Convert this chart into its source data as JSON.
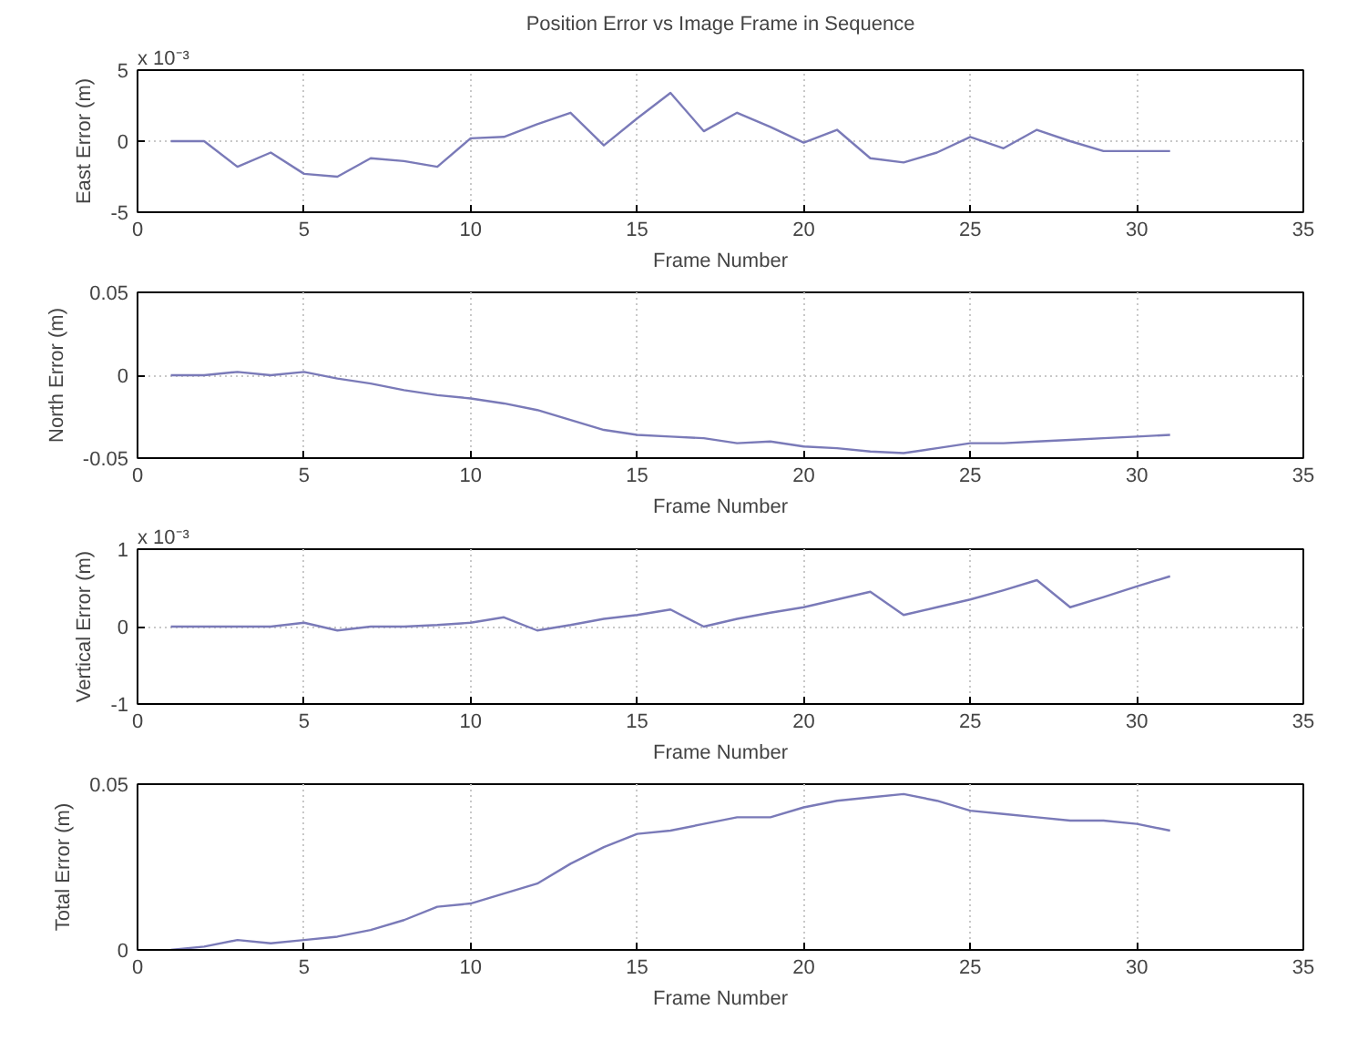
{
  "chart_data": [
    {
      "type": "line",
      "title": "Position Error vs Image Frame in Sequence",
      "xlabel": "Frame Number",
      "ylabel": "East Error (m)",
      "annotations": [
        "x 10⁻³"
      ],
      "x": [
        1,
        2,
        3,
        4,
        5,
        6,
        7,
        8,
        9,
        10,
        11,
        12,
        13,
        14,
        15,
        16,
        17,
        18,
        19,
        20,
        21,
        22,
        23,
        24,
        25,
        26,
        27,
        28,
        29,
        30,
        31
      ],
      "series": [
        {
          "color": "#7a7ab8",
          "values": [
            0,
            0,
            -1.8,
            -0.8,
            -2.3,
            -2.5,
            -1.2,
            -1.4,
            -1.8,
            0.2,
            0.3,
            1.2,
            2,
            -0.3,
            1.6,
            3.4,
            0.7,
            2,
            1,
            -0.1,
            0.8,
            -1.2,
            -1.5,
            -0.8,
            0.3,
            -0.5,
            0.8,
            0,
            -0.7,
            -0.7,
            -0.7
          ]
        }
      ],
      "xlim": [
        0,
        35
      ],
      "xticks": [
        0,
        5,
        10,
        15,
        20,
        25,
        30,
        35
      ],
      "ylim": [
        -5,
        5
      ],
      "yticks": [
        -5,
        0,
        5
      ],
      "grid": true
    },
    {
      "type": "line",
      "xlabel": "Frame Number",
      "ylabel": "North Error (m)",
      "x": [
        1,
        2,
        3,
        4,
        5,
        6,
        7,
        8,
        9,
        10,
        11,
        12,
        13,
        14,
        15,
        16,
        17,
        18,
        19,
        20,
        21,
        22,
        23,
        24,
        25,
        26,
        27,
        28,
        29,
        30,
        31
      ],
      "series": [
        {
          "color": "#7a7ab8",
          "values": [
            0,
            0,
            0.002,
            0,
            0.002,
            -0.002,
            -0.005,
            -0.009,
            -0.012,
            -0.014,
            -0.017,
            -0.021,
            -0.027,
            -0.033,
            -0.036,
            -0.037,
            -0.038,
            -0.041,
            -0.04,
            -0.043,
            -0.044,
            -0.046,
            -0.047,
            -0.044,
            -0.041,
            -0.041,
            -0.04,
            -0.039,
            -0.038,
            -0.037,
            -0.036
          ]
        }
      ],
      "xlim": [
        0,
        35
      ],
      "xticks": [
        0,
        5,
        10,
        15,
        20,
        25,
        30,
        35
      ],
      "ylim": [
        -0.05,
        0.05
      ],
      "yticks": [
        -0.05,
        0,
        0.05
      ],
      "grid": true
    },
    {
      "type": "line",
      "xlabel": "Frame Number",
      "ylabel": "Vertical Error (m)",
      "annotations": [
        "x 10⁻³"
      ],
      "x": [
        1,
        2,
        3,
        4,
        5,
        6,
        7,
        8,
        9,
        10,
        11,
        12,
        13,
        14,
        15,
        16,
        17,
        18,
        19,
        20,
        21,
        22,
        23,
        24,
        25,
        26,
        27,
        28,
        29,
        30,
        31
      ],
      "series": [
        {
          "color": "#7a7ab8",
          "values": [
            0,
            0,
            0,
            0,
            0.05,
            -0.05,
            0,
            0,
            0.02,
            0.05,
            0.12,
            -0.05,
            0.02,
            0.1,
            0.15,
            0.22,
            0,
            0.1,
            0.18,
            0.25,
            0.35,
            0.45,
            0.15,
            0.25,
            0.35,
            0.47,
            0.6,
            0.25,
            0.38,
            0.52,
            0.65
          ]
        }
      ],
      "xlim": [
        0,
        35
      ],
      "xticks": [
        0,
        5,
        10,
        15,
        20,
        25,
        30,
        35
      ],
      "ylim": [
        -1,
        1
      ],
      "yticks": [
        -1,
        0,
        1
      ],
      "grid": true
    },
    {
      "type": "line",
      "xlabel": "Frame Number",
      "ylabel": "Total Error (m)",
      "x": [
        1,
        2,
        3,
        4,
        5,
        6,
        7,
        8,
        9,
        10,
        11,
        12,
        13,
        14,
        15,
        16,
        17,
        18,
        19,
        20,
        21,
        22,
        23,
        24,
        25,
        26,
        27,
        28,
        29,
        30,
        31
      ],
      "series": [
        {
          "color": "#7a7ab8",
          "values": [
            0,
            0.001,
            0.003,
            0.002,
            0.003,
            0.004,
            0.006,
            0.009,
            0.013,
            0.014,
            0.017,
            0.02,
            0.026,
            0.031,
            0.035,
            0.036,
            0.038,
            0.04,
            0.04,
            0.043,
            0.045,
            0.046,
            0.047,
            0.045,
            0.042,
            0.041,
            0.04,
            0.039,
            0.039,
            0.038,
            0.036
          ]
        }
      ],
      "xlim": [
        0,
        35
      ],
      "xticks": [
        0,
        5,
        10,
        15,
        20,
        25,
        30,
        35
      ],
      "ylim": [
        0,
        0.05
      ],
      "yticks": [
        0,
        0.05
      ],
      "grid": true
    }
  ]
}
